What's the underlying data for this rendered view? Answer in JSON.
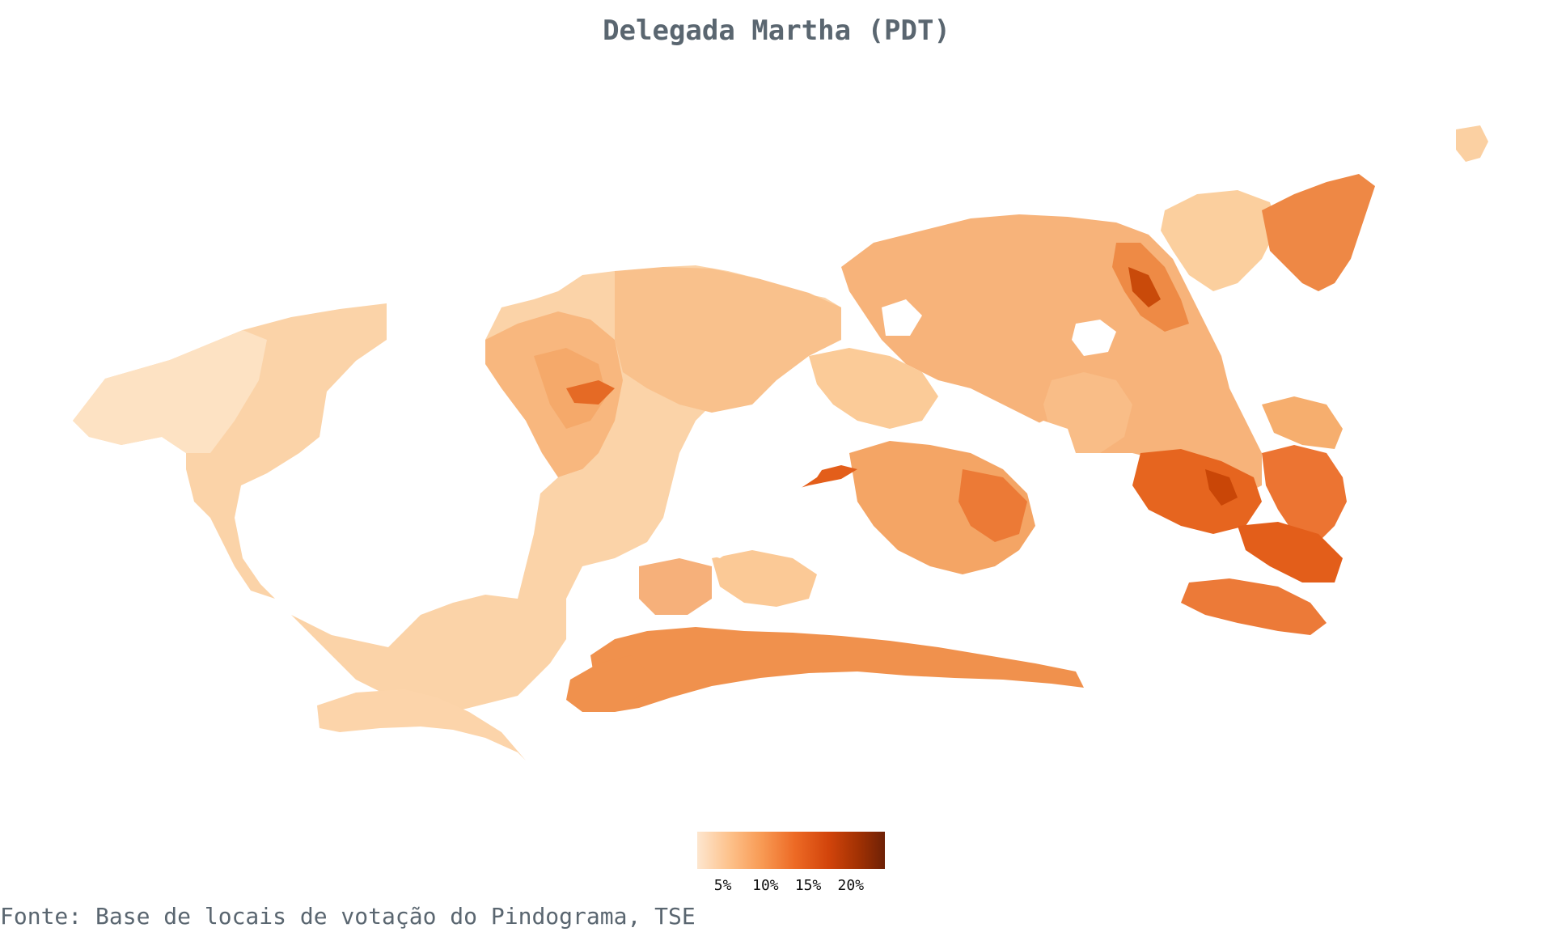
{
  "title": "Delegada Martha (PDT)",
  "source": "Fonte: Base de locais de votação do Pindograma, TSE",
  "legend": {
    "ticks": [
      "5%",
      "10%",
      "15%",
      "20%"
    ],
    "tick_values": [
      5,
      10,
      15,
      20
    ],
    "min": 2,
    "max": 24,
    "colors": [
      "#fde6cf",
      "#fdc28c",
      "#f89b55",
      "#ed6a25",
      "#d2440b",
      "#a13103",
      "#6e2106"
    ]
  },
  "map": {
    "type": "choropleth",
    "region": "Município do Rio de Janeiro",
    "palette": {
      "very_light": "#fde0c0",
      "light": "#fbcc98",
      "medium": "#f6ae6e",
      "strong": "#ee8640",
      "darker": "#e5621d",
      "dark": "#c94607",
      "darkest": "#8a2a05"
    }
  }
}
